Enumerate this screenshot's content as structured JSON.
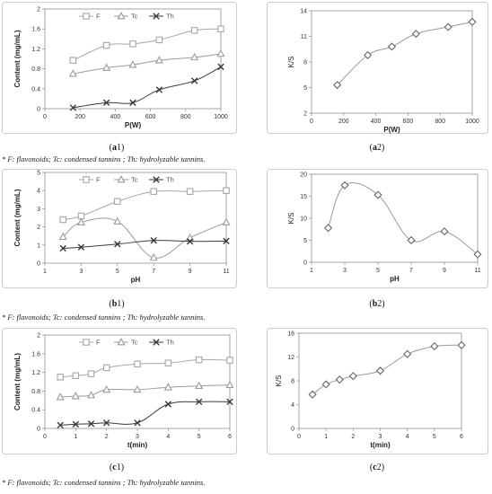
{
  "colors": {
    "F": "#a6a6a6",
    "Tc": "#9b9b9b",
    "Th": "#3a3a3a",
    "ks": "#9a9a9a",
    "frame": "#bfbfbf"
  },
  "footnote": "* F: flavonoids; Tc: condensed tannins ; Th: hydrolyzable tannins.",
  "chart_data": [
    {
      "id": "a1",
      "caption": "(a1)",
      "type": "line",
      "xlabel": "P(W)",
      "ylabel": "Content (mg/mL)",
      "xlim": [
        0,
        1000
      ],
      "ylim": [
        0,
        2
      ],
      "xticks": [
        0,
        200,
        400,
        600,
        800,
        1000
      ],
      "yticks": [
        0,
        0.4,
        0.8,
        1.2,
        1.6,
        2
      ],
      "ytick_labels": [
        "0",
        "0.4",
        "0.8",
        "1.2",
        "1.6",
        "2"
      ],
      "legend": "top-left",
      "x": [
        160,
        350,
        500,
        650,
        850,
        1000
      ],
      "series": [
        {
          "name": "F",
          "marker": "square",
          "values": [
            0.97,
            1.27,
            1.3,
            1.38,
            1.57,
            1.6
          ]
        },
        {
          "name": "Tc",
          "marker": "triangle",
          "values": [
            0.7,
            0.82,
            0.88,
            0.97,
            1.03,
            1.1
          ]
        },
        {
          "name": "Th",
          "marker": "x",
          "values": [
            0.02,
            0.12,
            0.12,
            0.38,
            0.56,
            0.84
          ]
        }
      ]
    },
    {
      "id": "a2",
      "caption": "(a2)",
      "type": "line",
      "xlabel": "P(W)",
      "ylabel": "K/S",
      "xlim": [
        0,
        1000
      ],
      "ylim": [
        2,
        14
      ],
      "xticks": [
        0,
        200,
        400,
        600,
        800,
        1000
      ],
      "yticks": [
        2,
        5,
        8,
        11,
        14
      ],
      "ytick_labels": [
        "2",
        "5",
        "8",
        "11",
        "14"
      ],
      "x": [
        160,
        350,
        500,
        650,
        850,
        1000
      ],
      "series": [
        {
          "marker": "diamond",
          "values": [
            5.3,
            8.8,
            9.8,
            11.3,
            12.1,
            12.7
          ]
        }
      ]
    },
    {
      "id": "b1",
      "caption": "(b1)",
      "type": "line",
      "xlabel": "pH",
      "ylabel": "Content (mg/mL)",
      "xlim": [
        1,
        11
      ],
      "ylim": [
        0,
        5
      ],
      "xticks": [
        1,
        3,
        5,
        7,
        9,
        11
      ],
      "yticks": [
        0,
        1,
        2,
        3,
        4,
        5
      ],
      "ytick_labels": [
        "0",
        "1",
        "2",
        "3",
        "4",
        "5"
      ],
      "legend": "top-left",
      "x": [
        2,
        3,
        5,
        7,
        9,
        11
      ],
      "series": [
        {
          "name": "F",
          "marker": "square",
          "values": [
            2.4,
            2.6,
            3.4,
            3.95,
            3.95,
            4.0
          ]
        },
        {
          "name": "Tc",
          "marker": "triangle",
          "values": [
            1.45,
            2.25,
            2.3,
            0.3,
            1.4,
            2.25
          ]
        },
        {
          "name": "Th",
          "marker": "x",
          "values": [
            0.82,
            0.88,
            1.05,
            1.25,
            1.2,
            1.22
          ]
        }
      ]
    },
    {
      "id": "b2",
      "caption": "(b2)",
      "type": "line",
      "xlabel": "pH",
      "ylabel": "K/S",
      "xlim": [
        1,
        11
      ],
      "ylim": [
        0,
        20
      ],
      "xticks": [
        1,
        3,
        5,
        7,
        9,
        11
      ],
      "yticks": [
        0,
        5,
        10,
        15,
        20
      ],
      "ytick_labels": [
        "0",
        "5",
        "10",
        "15",
        "20"
      ],
      "x": [
        2,
        3,
        5,
        7,
        9,
        11
      ],
      "series": [
        {
          "marker": "diamond",
          "values": [
            7.8,
            17.5,
            15.3,
            5.0,
            7.0,
            1.8
          ]
        }
      ]
    },
    {
      "id": "c1",
      "caption": "(c1)",
      "type": "line",
      "xlabel": "t(min)",
      "ylabel": "Content (mg/mL)",
      "xlim": [
        0,
        6
      ],
      "ylim": [
        0,
        2
      ],
      "xticks": [
        0,
        1,
        2,
        3,
        4,
        5,
        6
      ],
      "yticks": [
        0,
        0.4,
        0.8,
        1.2,
        1.6,
        2
      ],
      "ytick_labels": [
        "0",
        "0.4",
        "0.8",
        "1.2",
        "1.6",
        "2"
      ],
      "legend": "top-left",
      "x": [
        0.5,
        1,
        1.5,
        2,
        3,
        4,
        5,
        6
      ],
      "series": [
        {
          "name": "F",
          "marker": "square",
          "values": [
            1.1,
            1.13,
            1.17,
            1.3,
            1.38,
            1.4,
            1.47,
            1.46
          ]
        },
        {
          "name": "Tc",
          "marker": "triangle",
          "values": [
            0.67,
            0.69,
            0.71,
            0.83,
            0.83,
            0.88,
            0.91,
            0.93
          ]
        },
        {
          "name": "Th",
          "marker": "x",
          "values": [
            0.07,
            0.09,
            0.1,
            0.12,
            0.12,
            0.52,
            0.57,
            0.57
          ]
        }
      ]
    },
    {
      "id": "c2",
      "caption": "(c2)",
      "type": "line",
      "xlabel": "t(min)",
      "ylabel": "K/S",
      "xlim": [
        0,
        6
      ],
      "ylim": [
        0,
        16
      ],
      "xticks": [
        0,
        1,
        2,
        3,
        4,
        5,
        6
      ],
      "yticks": [
        0,
        4,
        8,
        12,
        16
      ],
      "ytick_labels": [
        "0",
        "4",
        "8",
        "12",
        "16"
      ],
      "x": [
        0.5,
        1,
        1.5,
        2,
        3,
        4,
        5,
        6
      ],
      "series": [
        {
          "marker": "diamond",
          "values": [
            5.7,
            7.4,
            8.2,
            8.8,
            9.7,
            12.5,
            13.8,
            14.0
          ]
        }
      ]
    }
  ]
}
